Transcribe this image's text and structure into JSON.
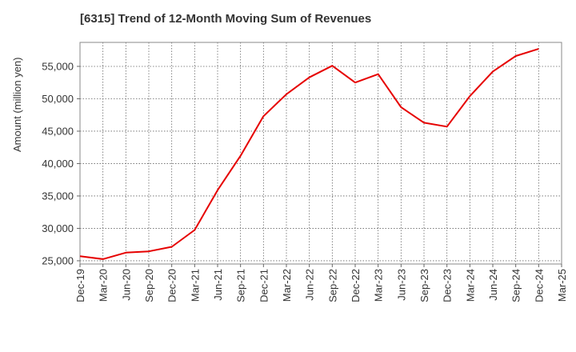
{
  "chart_data": {
    "type": "line",
    "title": "[6315]  Trend of 12-Month Moving Sum of Revenues",
    "xlabel": "",
    "ylabel": "Amount (million yen)",
    "categories": [
      "Dec-19",
      "Mar-20",
      "Jun-20",
      "Sep-20",
      "Dec-20",
      "Mar-21",
      "Jun-21",
      "Sep-21",
      "Dec-21",
      "Mar-22",
      "Jun-22",
      "Sep-22",
      "Dec-22",
      "Mar-23",
      "Jun-23",
      "Sep-23",
      "Dec-23",
      "Mar-24",
      "Jun-24",
      "Sep-24",
      "Dec-24",
      "Mar-25"
    ],
    "series": [
      {
        "name": "",
        "color": "#e60000",
        "values": [
          25700,
          25250,
          26250,
          26450,
          27150,
          29750,
          35900,
          41200,
          47300,
          50700,
          53300,
          55100,
          52500,
          53800,
          48700,
          46300,
          45700,
          50400,
          54200,
          56600,
          57700,
          null
        ]
      }
    ],
    "yticks": [
      25000,
      30000,
      35000,
      40000,
      45000,
      50000,
      55000
    ],
    "ytick_labels": [
      "25,000",
      "30,000",
      "35,000",
      "40,000",
      "45,000",
      "50,000",
      "55,000"
    ],
    "ylim": [
      24500,
      58700
    ],
    "grid": true
  }
}
